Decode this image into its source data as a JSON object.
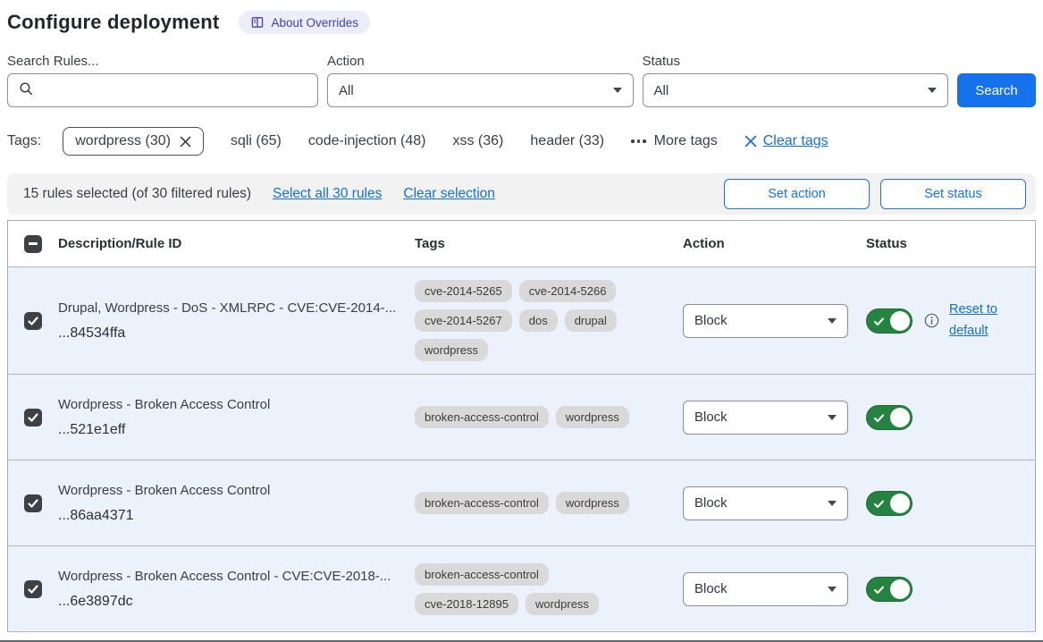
{
  "header": {
    "title": "Configure deployment",
    "about_badge": "About Overrides"
  },
  "filters": {
    "search_label": "Search Rules...",
    "search_value": "",
    "action_label": "Action",
    "action_value": "All",
    "status_label": "Status",
    "status_value": "All",
    "search_button": "Search"
  },
  "tags_bar": {
    "label": "Tags:",
    "selected_tag": "wordpress (30)",
    "tags": [
      "sqli (65)",
      "code-injection (48)",
      "xss (36)",
      "header (33)"
    ],
    "more_tags": "More tags",
    "clear_tags": "Clear tags"
  },
  "selection_bar": {
    "summary": "15 rules selected (of 30 filtered rules)",
    "select_all": "Select all 30 rules",
    "clear_selection": "Clear selection",
    "set_action": "Set action",
    "set_status": "Set status"
  },
  "table": {
    "columns": {
      "description": "Description/Rule ID",
      "tags": "Tags",
      "action": "Action",
      "status": "Status"
    },
    "rows": [
      {
        "description": "Drupal, Wordpress - DoS - XMLRPC - CVE:CVE-2014-...",
        "rule_id": "...84534ffa",
        "tags": [
          "cve-2014-5265",
          "cve-2014-5266",
          "cve-2014-5267",
          "dos",
          "drupal",
          "wordpress"
        ],
        "action": "Block",
        "enabled": true,
        "checked": true,
        "reset_label": "Reset to default"
      },
      {
        "description": "Wordpress - Broken Access Control",
        "rule_id": "...521e1eff",
        "tags": [
          "broken-access-control",
          "wordpress"
        ],
        "action": "Block",
        "enabled": true,
        "checked": true,
        "reset_label": null
      },
      {
        "description": "Wordpress - Broken Access Control",
        "rule_id": "...86aa4371",
        "tags": [
          "broken-access-control",
          "wordpress"
        ],
        "action": "Block",
        "enabled": true,
        "checked": true,
        "reset_label": null
      },
      {
        "description": "Wordpress - Broken Access Control - CVE:CVE-2018-...",
        "rule_id": "...6e3897dc",
        "tags": [
          "broken-access-control",
          "cve-2018-12895",
          "wordpress"
        ],
        "action": "Block",
        "enabled": true,
        "checked": true,
        "reset_label": null
      }
    ]
  },
  "colors": {
    "accent_blue": "#1672ec",
    "link_blue": "#166fd0",
    "toggle_green": "#268240",
    "badge_bg": "#edecfb",
    "badge_text": "#4140b4",
    "row_bg": "#ecf2fb",
    "pill_bg": "#d9d9d9",
    "selection_bar_bg": "#f2f2f3"
  }
}
